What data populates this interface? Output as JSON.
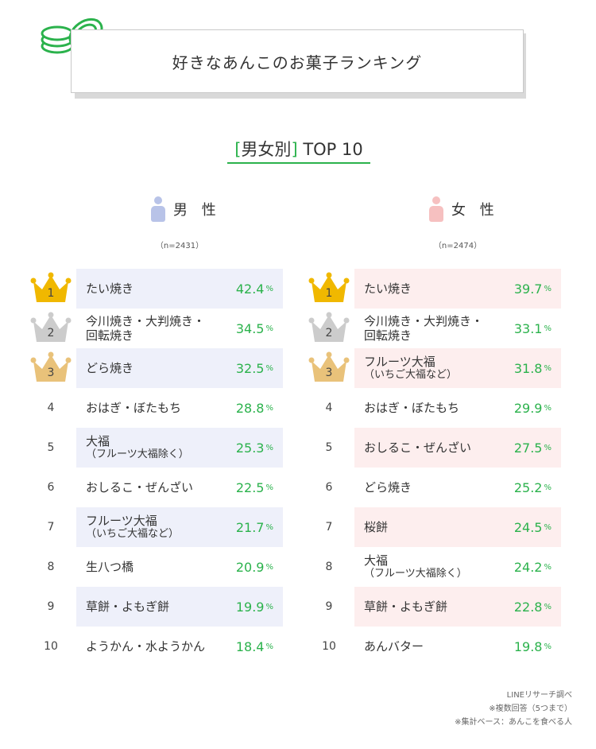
{
  "header": {
    "title": "好きなあんこのお菓子ランキング",
    "logo_icon": "coins-icon"
  },
  "section": {
    "bracket_open": "[",
    "label": "男女別",
    "bracket_close": "]",
    "suffix": "TOP 10"
  },
  "colors": {
    "accent_green": "#2bb24c",
    "male_band": "#eef0fa",
    "female_band": "#fdeeee",
    "male_icon": "#b8c3e8",
    "female_icon": "#f6c0c0",
    "gold": "#f0b800",
    "silver": "#cccccc",
    "bronze": "#e9c27a"
  },
  "chart_data": [
    {
      "type": "table",
      "group": "男 性",
      "sample": "（n=2431）",
      "unit": "%",
      "ranks": [
        "1",
        "2",
        "3",
        "4",
        "5",
        "6",
        "7",
        "8",
        "9",
        "10"
      ],
      "items": [
        {
          "rank": "1",
          "name": "たい焼き",
          "name2": "",
          "value": "42.4"
        },
        {
          "rank": "2",
          "name": "今川焼き・大判焼き・",
          "name2": "回転焼き",
          "value": "34.5"
        },
        {
          "rank": "3",
          "name": "どら焼き",
          "name2": "",
          "value": "32.5"
        },
        {
          "rank": "4",
          "name": "おはぎ・ぼたもち",
          "name2": "",
          "value": "28.8"
        },
        {
          "rank": "5",
          "name": "大福",
          "name2": "（フルーツ大福除く）",
          "value": "25.3"
        },
        {
          "rank": "6",
          "name": "おしるこ・ぜんざい",
          "name2": "",
          "value": "22.5"
        },
        {
          "rank": "7",
          "name": "フルーツ大福",
          "name2": "（いちご大福など）",
          "value": "21.7"
        },
        {
          "rank": "8",
          "name": "生八つ橋",
          "name2": "",
          "value": "20.9"
        },
        {
          "rank": "9",
          "name": "草餅・よもぎ餅",
          "name2": "",
          "value": "19.9"
        },
        {
          "rank": "10",
          "name": "ようかん・水ようかん",
          "name2": "",
          "value": "18.4"
        }
      ]
    },
    {
      "type": "table",
      "group": "女 性",
      "sample": "（n=2474）",
      "unit": "%",
      "ranks": [
        "1",
        "2",
        "3",
        "4",
        "5",
        "6",
        "7",
        "8",
        "9",
        "10"
      ],
      "items": [
        {
          "rank": "1",
          "name": "たい焼き",
          "name2": "",
          "value": "39.7"
        },
        {
          "rank": "2",
          "name": "今川焼き・大判焼き・",
          "name2": "回転焼き",
          "value": "33.1"
        },
        {
          "rank": "3",
          "name": "フルーツ大福",
          "name2": "（いちご大福など）",
          "value": "31.8"
        },
        {
          "rank": "4",
          "name": "おはぎ・ぼたもち",
          "name2": "",
          "value": "29.9"
        },
        {
          "rank": "5",
          "name": "おしるこ・ぜんざい",
          "name2": "",
          "value": "27.5"
        },
        {
          "rank": "6",
          "name": "どら焼き",
          "name2": "",
          "value": "25.2"
        },
        {
          "rank": "7",
          "name": "桜餅",
          "name2": "",
          "value": "24.5"
        },
        {
          "rank": "8",
          "name": "大福",
          "name2": "（フルーツ大福除く）",
          "value": "24.2"
        },
        {
          "rank": "9",
          "name": "草餅・よもぎ餅",
          "name2": "",
          "value": "22.8"
        },
        {
          "rank": "10",
          "name": "あんバター",
          "name2": "",
          "value": "19.8"
        }
      ]
    }
  ],
  "footnotes": {
    "source": "LINEリサーチ調べ",
    "multiple": "※複数回答（5つまで）",
    "base": "※集計ベース：あんこを食べる人"
  }
}
